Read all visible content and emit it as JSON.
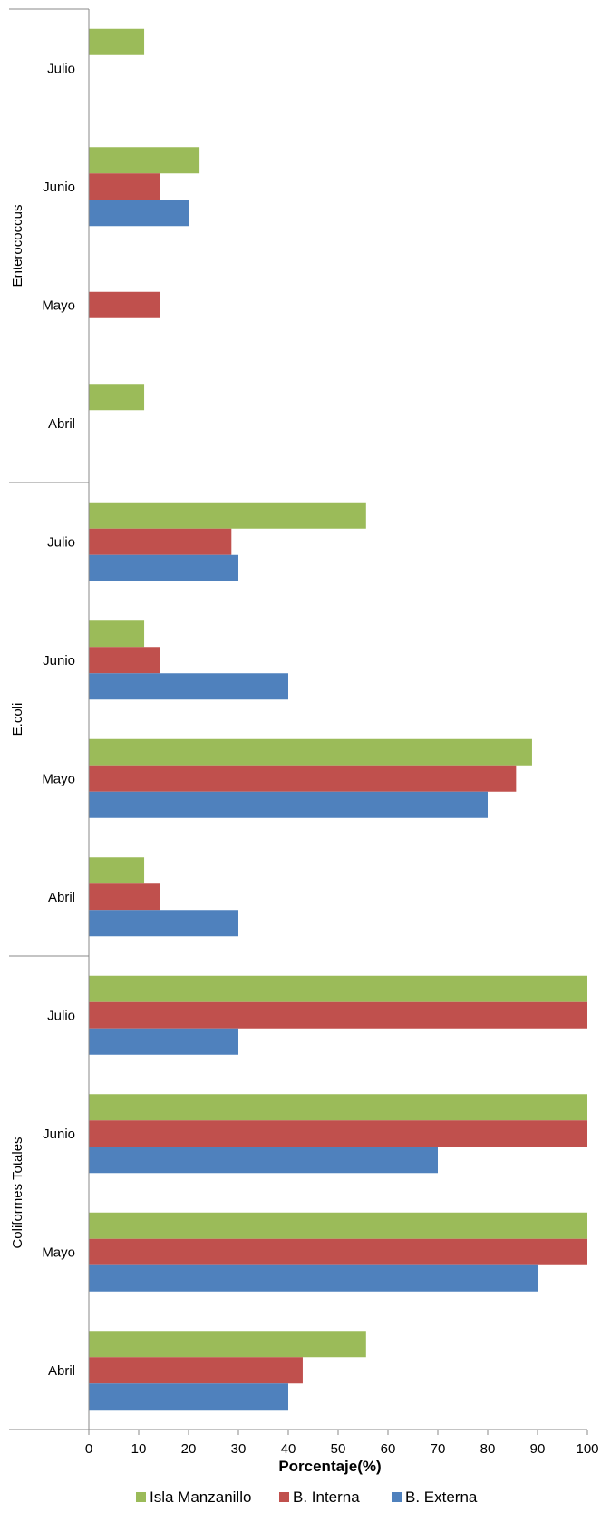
{
  "chart_data": {
    "type": "bar",
    "orientation": "horizontal",
    "title": "",
    "xlabel": "Porcentaje(%)",
    "ylabel": "",
    "xlim": [
      0,
      100
    ],
    "xticks": [
      0,
      10,
      20,
      30,
      40,
      50,
      60,
      70,
      80,
      90,
      100
    ],
    "grid": false,
    "legend_position": "bottom",
    "series_names": [
      "Isla Manzanillo",
      "B. Interna",
      "B. Externa"
    ],
    "colors": [
      "#9BBB59",
      "#C0504D",
      "#4F81BD"
    ],
    "groups": [
      {
        "name": "Enterococcus",
        "categories": [
          {
            "label": "Julio",
            "values": [
              11.1,
              null,
              null
            ]
          },
          {
            "label": "Junio",
            "values": [
              22.2,
              14.3,
              20
            ]
          },
          {
            "label": "Mayo",
            "values": [
              null,
              14.3,
              null
            ]
          },
          {
            "label": "Abril",
            "values": [
              11.1,
              null,
              null
            ]
          }
        ]
      },
      {
        "name": "E.coli",
        "categories": [
          {
            "label": "Julio",
            "values": [
              55.6,
              28.6,
              30
            ]
          },
          {
            "label": "Junio",
            "values": [
              11.1,
              14.3,
              40
            ]
          },
          {
            "label": "Mayo",
            "values": [
              88.9,
              85.7,
              80
            ]
          },
          {
            "label": "Abril",
            "values": [
              11.1,
              14.3,
              30
            ]
          }
        ]
      },
      {
        "name": "Coliformes Totales",
        "categories": [
          {
            "label": "Julio",
            "values": [
              100,
              100,
              30
            ]
          },
          {
            "label": "Junio",
            "values": [
              100,
              100,
              70
            ]
          },
          {
            "label": "Mayo",
            "values": [
              100,
              100,
              90
            ]
          },
          {
            "label": "Abril",
            "values": [
              55.6,
              42.9,
              40
            ]
          }
        ]
      }
    ]
  }
}
